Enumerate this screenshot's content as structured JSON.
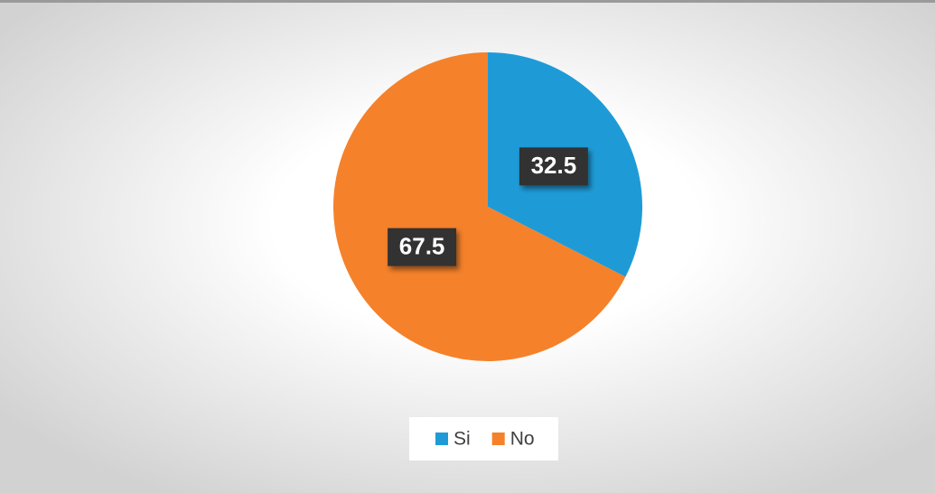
{
  "chart_data": {
    "type": "pie",
    "categories": [
      "Si",
      "No"
    ],
    "values": [
      32.5,
      67.5
    ],
    "colors": [
      "#1e9bd7",
      "#f5812a"
    ]
  }
}
